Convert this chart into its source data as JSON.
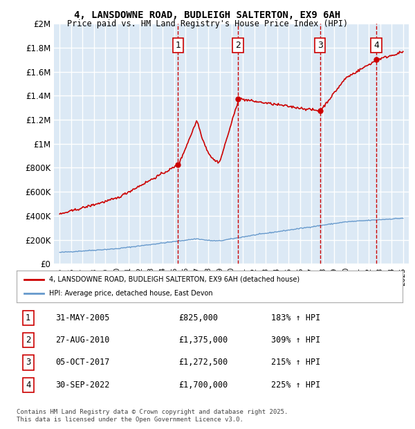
{
  "title_line1": "4, LANSDOWNE ROAD, BUDLEIGH SALTERTON, EX9 6AH",
  "title_line2": "Price paid vs. HM Land Registry's House Price Index (HPI)",
  "background_color": "#dce9f5",
  "plot_bg_color": "#dce9f5",
  "red_line_color": "#cc0000",
  "blue_line_color": "#6699cc",
  "sale_marker_color": "#cc0000",
  "vline_color": "#cc0000",
  "grid_color": "#ffffff",
  "ylim": [
    0,
    2000000
  ],
  "yticks": [
    0,
    200000,
    400000,
    600000,
    800000,
    1000000,
    1200000,
    1400000,
    1600000,
    1800000,
    2000000
  ],
  "ytick_labels": [
    "£0",
    "£200K",
    "£400K",
    "£600K",
    "£800K",
    "£1M",
    "£1.2M",
    "£1.4M",
    "£1.6M",
    "£1.8M",
    "£2M"
  ],
  "xlim_start": 1994.5,
  "xlim_end": 2025.5,
  "sale_dates": [
    "2005-05-31",
    "2010-08-27",
    "2017-10-05",
    "2022-09-30"
  ],
  "sale_prices": [
    825000,
    1375000,
    1272500,
    1700000
  ],
  "sale_labels": [
    "1",
    "2",
    "3",
    "4"
  ],
  "sale_info": [
    {
      "num": "1",
      "date": "31-MAY-2005",
      "price": "£825,000",
      "pct": "183% ↑ HPI"
    },
    {
      "num": "2",
      "date": "27-AUG-2010",
      "price": "£1,375,000",
      "pct": "309% ↑ HPI"
    },
    {
      "num": "3",
      "date": "05-OCT-2017",
      "price": "£1,272,500",
      "pct": "215% ↑ HPI"
    },
    {
      "num": "4",
      "date": "30-SEP-2022",
      "price": "£1,700,000",
      "pct": "225% ↑ HPI"
    }
  ],
  "legend_red_label": "4, LANSDOWNE ROAD, BUDLEIGH SALTERTON, EX9 6AH (detached house)",
  "legend_blue_label": "HPI: Average price, detached house, East Devon",
  "footer_text": "Contains HM Land Registry data © Crown copyright and database right 2025.\nThis data is licensed under the Open Government Licence v3.0."
}
